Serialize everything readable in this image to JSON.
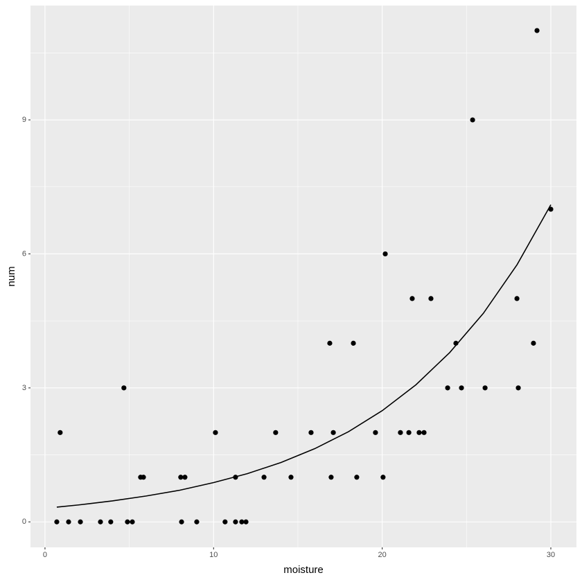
{
  "chart_data": {
    "type": "scatter",
    "x_label": "moisture",
    "y_label": "num",
    "x": [
      0.7,
      0.9,
      1.4,
      2.1,
      3.29,
      3.9,
      4.68,
      4.89,
      5.18,
      5.67,
      5.84,
      8.05,
      8.1,
      8.3,
      9.0,
      10.11,
      10.68,
      11.3,
      11.3,
      11.67,
      11.92,
      12.99,
      13.68,
      14.59,
      15.78,
      16.89,
      16.97,
      17.1,
      18.29,
      18.49,
      19.6,
      20.05,
      20.18,
      21.08,
      21.58,
      21.78,
      22.19,
      22.48,
      22.89,
      23.88,
      24.37,
      24.7,
      25.36,
      26.1,
      27.99,
      28.07,
      28.97,
      29.18,
      30.0
    ],
    "values": [
      0,
      2,
      0,
      0,
      0,
      0,
      3,
      0,
      0,
      1,
      1,
      1,
      0,
      1,
      0,
      2,
      0,
      1,
      0,
      0,
      0,
      1,
      2,
      1,
      2,
      4,
      1,
      2,
      4,
      1,
      2,
      1,
      6,
      2,
      2,
      5,
      2,
      2,
      5,
      3,
      4,
      3,
      9,
      3,
      5,
      3,
      4,
      11,
      7
    ],
    "color": "#000000",
    "fit": {
      "type": "line",
      "color": "#000000",
      "x": [
        0.7,
        2,
        4,
        6,
        8,
        10,
        12,
        14,
        16,
        18,
        20,
        22,
        24,
        26,
        28,
        30
      ],
      "values": [
        0.33,
        0.38,
        0.47,
        0.58,
        0.71,
        0.88,
        1.08,
        1.33,
        1.64,
        2.02,
        2.49,
        3.07,
        3.79,
        4.67,
        5.76,
        7.1
      ]
    },
    "xlim": [
      -0.86,
      31.52
    ],
    "ylim": [
      -0.57,
      11.56
    ],
    "xticks": [
      0,
      10,
      20,
      30
    ],
    "yticks": [
      0,
      3,
      6,
      9
    ],
    "x_minor_ticks": [
      5,
      15,
      25
    ],
    "y_minor_ticks": [
      1.5,
      4.5,
      7.5,
      10.5
    ],
    "grid": true,
    "panel_color": "#ebebeb"
  }
}
